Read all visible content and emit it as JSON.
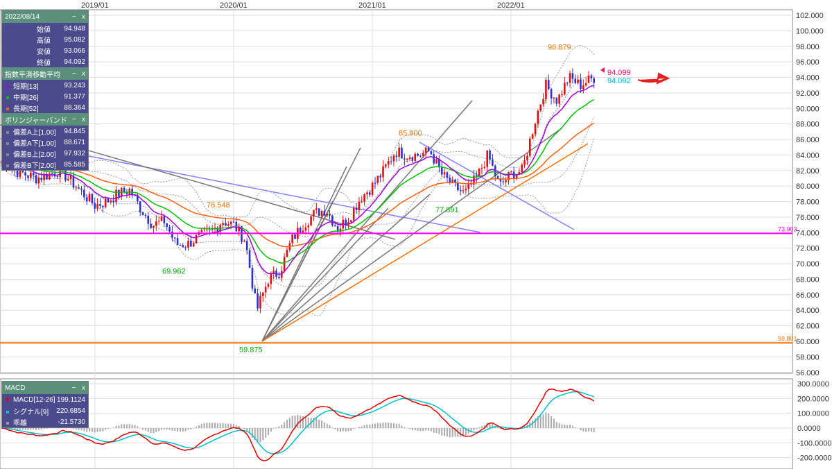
{
  "info": {
    "date": "2022/08/14",
    "rows": [
      {
        "label": "始値",
        "value": "94.948"
      },
      {
        "label": "高値",
        "value": "95.082"
      },
      {
        "label": "安値",
        "value": "93.066"
      },
      {
        "label": "終値",
        "value": "94.092"
      }
    ]
  },
  "ema": {
    "title": "指数平滑移動平均",
    "rows": [
      {
        "label": "短期[13]",
        "value": "93.243",
        "color": "#a000e0"
      },
      {
        "label": "中期[26]",
        "value": "91.377",
        "color": "#00c000"
      },
      {
        "label": "長期[52]",
        "value": "88.364",
        "color": "#ff6010"
      }
    ]
  },
  "bb": {
    "title": "ボリンジャーバンド",
    "rows": [
      {
        "label": "偏差A上[1.00]",
        "value": "94.845"
      },
      {
        "label": "偏差A下[1.00]",
        "value": "88.671"
      },
      {
        "label": "偏差B上[2.00]",
        "value": "97.932"
      },
      {
        "label": "偏差B下[2.00]",
        "value": "85.585"
      }
    ]
  },
  "macd": {
    "title": "MACD",
    "rows": [
      {
        "label": "MACD[12-26]",
        "value": "199.1124",
        "color": "#e00000"
      },
      {
        "label": "シグナル[9]",
        "value": "220.6854",
        "color": "#00c0d0"
      },
      {
        "label": "乖離",
        "value": "-21.5730",
        "color": "#999"
      }
    ]
  },
  "panel_controls": {
    "minimize": "−",
    "close": "x"
  },
  "chart_data": {
    "type": "candlestick",
    "x_ticks": [
      "2019/01",
      "2020/01",
      "2021/01",
      "2022/01"
    ],
    "y_ticks": [
      "102.000",
      "100.000",
      "98.000",
      "96.000",
      "94.000",
      "92.000",
      "90.000",
      "88.000",
      "86.000",
      "84.000",
      "82.000",
      "80.000",
      "78.000",
      "76.000",
      "74.000",
      "72.000",
      "70.000",
      "68.000",
      "66.000",
      "64.000",
      "62.000",
      "60.000",
      "58.000",
      "56.000"
    ],
    "ylim": [
      56,
      102
    ],
    "monthly_close": [
      [
        "2018/04",
        83.3
      ],
      [
        "2018/06",
        82
      ],
      [
        "2018/08",
        81
      ],
      [
        "2018/10",
        82
      ],
      [
        "2018/12",
        79
      ],
      [
        "2019/01",
        77.5
      ],
      [
        "2019/02",
        78
      ],
      [
        "2019/03",
        79
      ],
      [
        "2019/04",
        79.5
      ],
      [
        "2019/05",
        77
      ],
      [
        "2019/06",
        75
      ],
      [
        "2019/07",
        75.5
      ],
      [
        "2019/08",
        72.5
      ],
      [
        "2019/09",
        72.5
      ],
      [
        "2019/10",
        73.5
      ],
      [
        "2019/11",
        74
      ],
      [
        "2019/12",
        75.5
      ],
      [
        "2020/01",
        75
      ],
      [
        "2020/02",
        73
      ],
      [
        "2020/03",
        64
      ],
      [
        "2020/04",
        68
      ],
      [
        "2020/05",
        69
      ],
      [
        "2020/06",
        73
      ],
      [
        "2020/07",
        75
      ],
      [
        "2020/08",
        76.5
      ],
      [
        "2020/09",
        77
      ],
      [
        "2020/10",
        74.5
      ],
      [
        "2020/11",
        76
      ],
      [
        "2020/12",
        78.5
      ],
      [
        "2021/01",
        80
      ],
      [
        "2021/02",
        82
      ],
      [
        "2021/03",
        84.5
      ],
      [
        "2021/04",
        84
      ],
      [
        "2021/05",
        84
      ],
      [
        "2021/06",
        84.5
      ],
      [
        "2021/07",
        81.5
      ],
      [
        "2021/08",
        80
      ],
      [
        "2021/09",
        79
      ],
      [
        "2021/10",
        81
      ],
      [
        "2021/11",
        84
      ],
      [
        "2021/12",
        80
      ],
      [
        "2022/01",
        81.5
      ],
      [
        "2022/02",
        82
      ],
      [
        "2022/03",
        88
      ],
      [
        "2022/04",
        93
      ],
      [
        "2022/05",
        91
      ],
      [
        "2022/06",
        94
      ],
      [
        "2022/07",
        93
      ],
      [
        "2022/08",
        94.1
      ]
    ],
    "annotations": [
      {
        "text": "96.879",
        "color": "#ff7000",
        "price": 96.879
      },
      {
        "text": "85.800",
        "color": "#ff7000",
        "price": 85.8
      },
      {
        "text": "76.548",
        "color": "#ff7000",
        "price": 76.548
      },
      {
        "text": "77.891",
        "color": "#00b000",
        "price": 77.891
      },
      {
        "text": "69.962",
        "color": "#00b000",
        "price": 69.962
      },
      {
        "text": "59.875",
        "color": "#00b000",
        "price": 59.875
      }
    ],
    "last_labels": [
      {
        "text": "94.099",
        "color": "#ff1060"
      },
      {
        "text": "94.092",
        "color": "#00b0e0"
      }
    ],
    "horizontal_lines": [
      {
        "text": "73.903",
        "price": 73.903,
        "color": "#ff00ff"
      },
      {
        "text": "59.801",
        "price": 59.801,
        "color": "#ff7000"
      }
    ],
    "macd_ticks": [
      "300.0000",
      "200.0000",
      "100.0000",
      "0.0000",
      "-100.0000",
      "-200.0000"
    ],
    "macd_ylim": [
      -230,
      320
    ]
  }
}
